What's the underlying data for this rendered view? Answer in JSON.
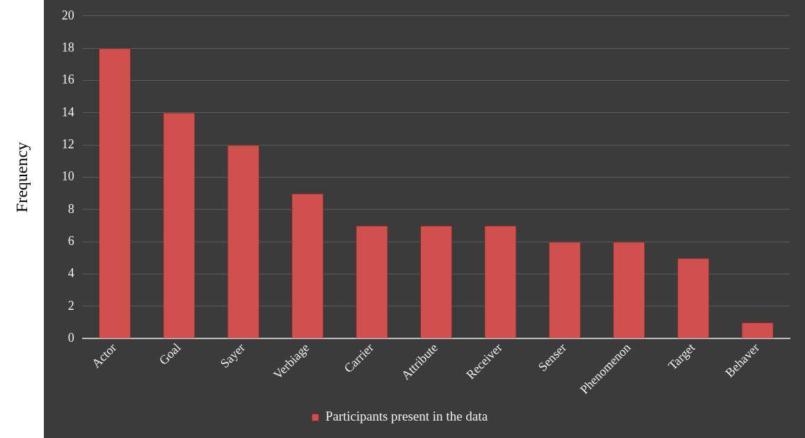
{
  "chart_data": {
    "type": "bar",
    "ylabel": "Frequency",
    "categories": [
      "Actor",
      "Goal",
      "Sayer",
      "Verbiage",
      "Carrier",
      "Attribute",
      "Receiver",
      "Senser",
      "Phenomenon",
      "Target",
      "Behaver"
    ],
    "series": [
      {
        "name": "Participants present in the data",
        "color": "#d0504d",
        "values": [
          18,
          14,
          12,
          9,
          7,
          7,
          7,
          6,
          6,
          5,
          1
        ]
      }
    ],
    "ylim": [
      0,
      20
    ],
    "yticks": [
      0,
      2,
      4,
      6,
      8,
      10,
      12,
      14,
      16,
      18,
      20
    ],
    "grid": "y",
    "legend": "bottom"
  }
}
